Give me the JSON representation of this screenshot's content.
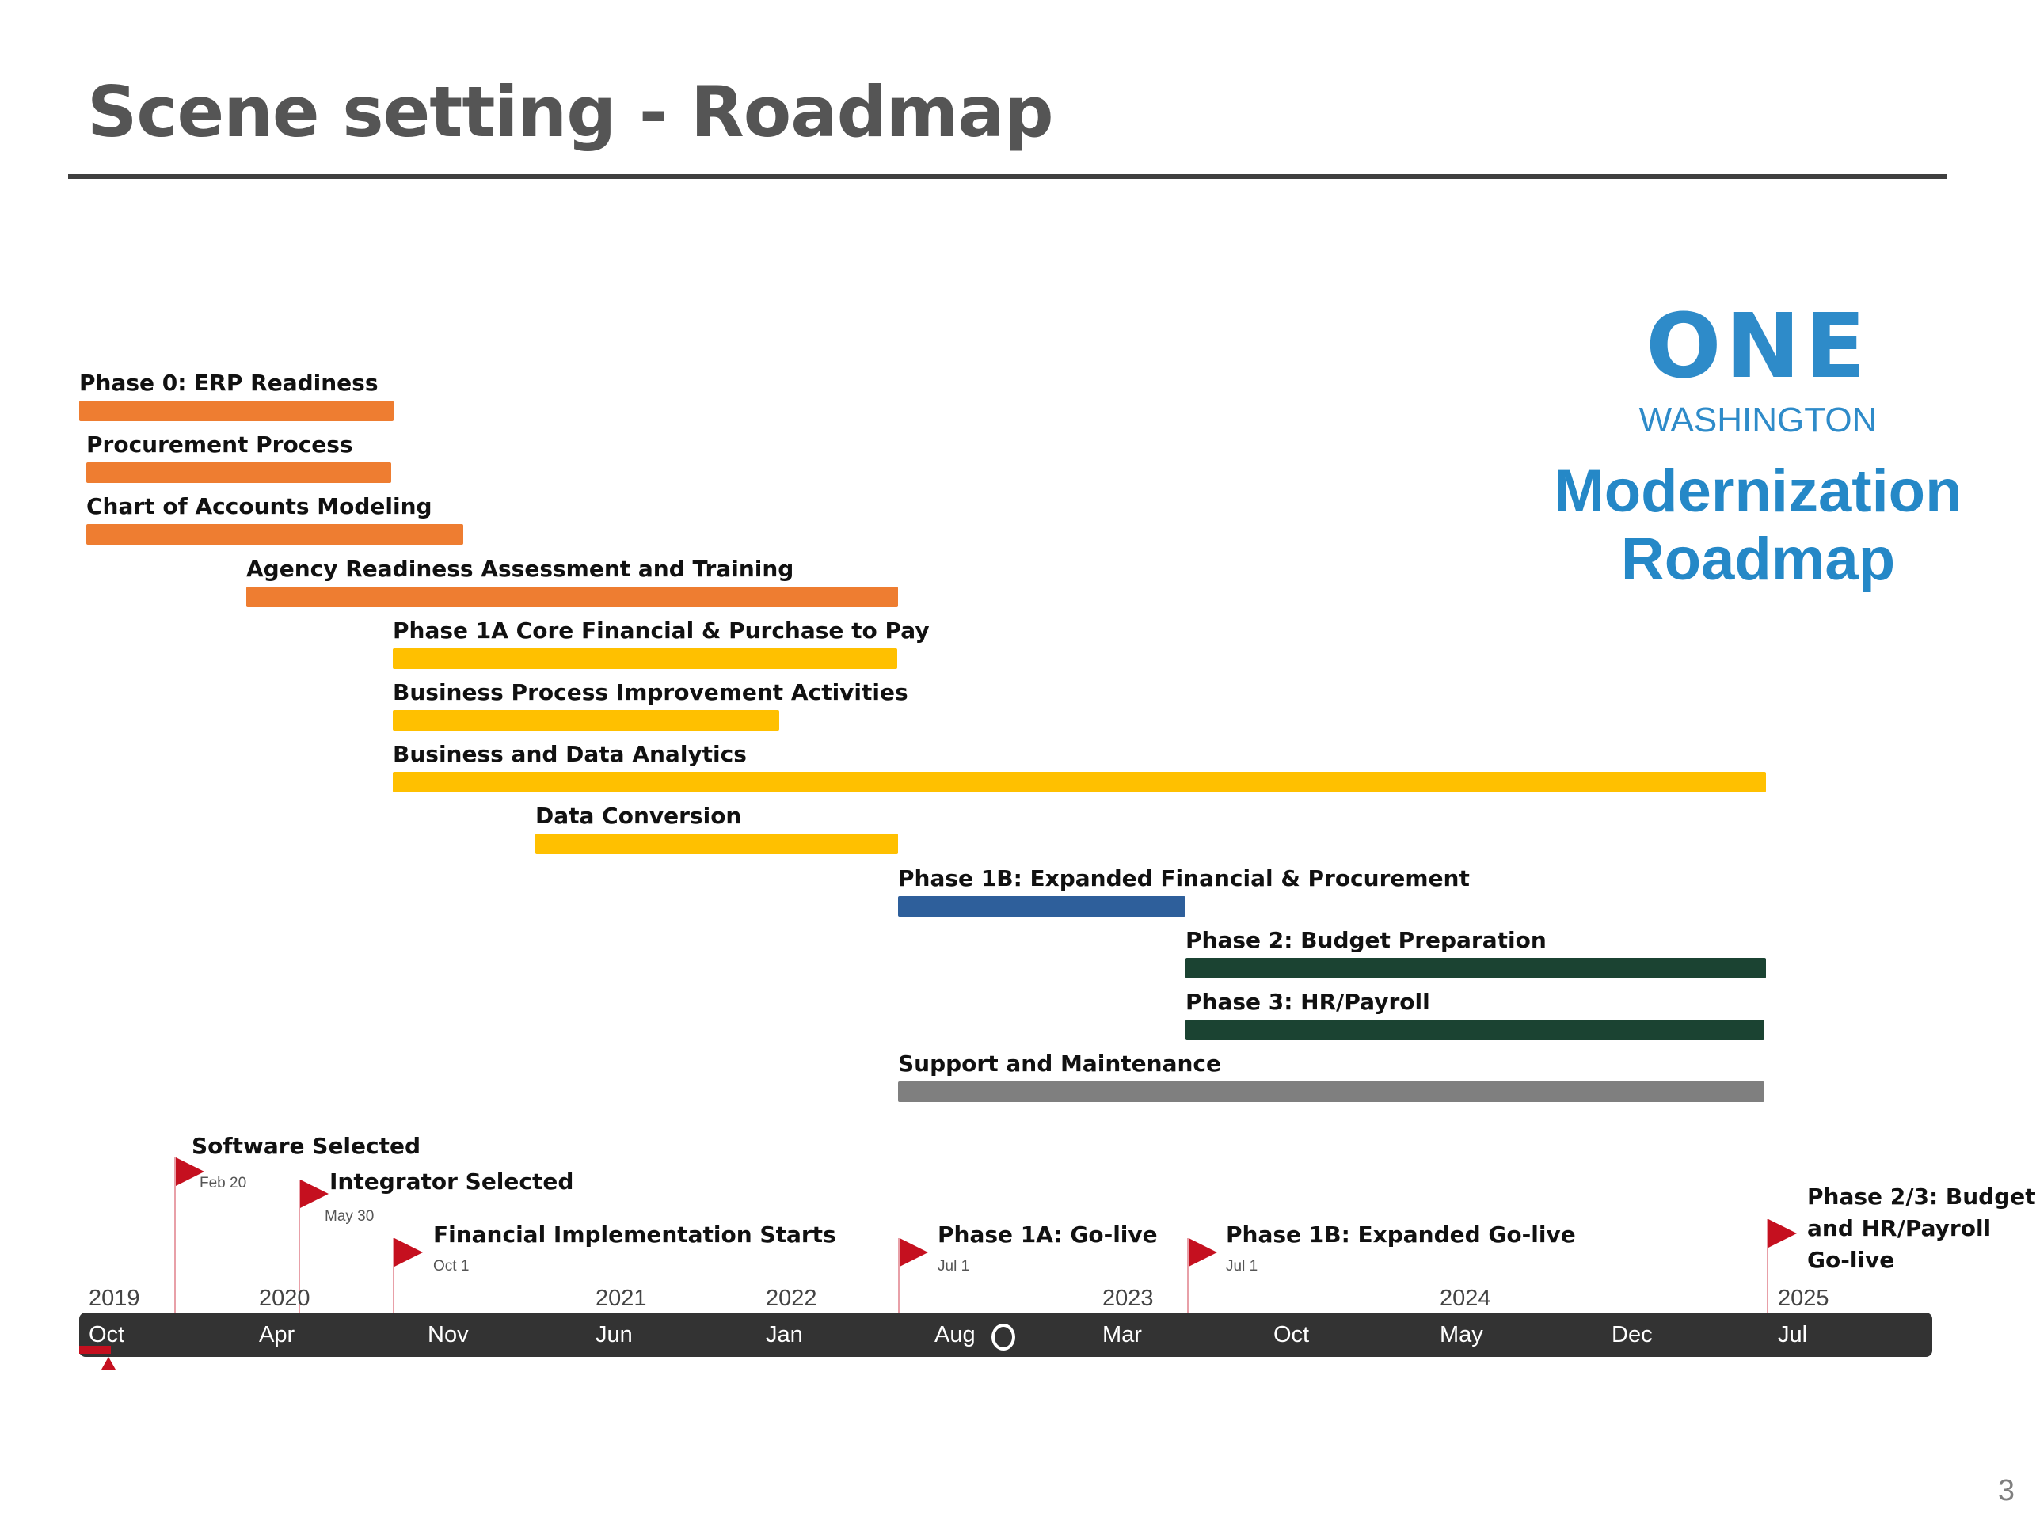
{
  "slide": {
    "title": "Scene setting - Roadmap",
    "page_number": "3"
  },
  "logo": {
    "word": "ONE",
    "subtitle": "WASHINGTON",
    "heading_line1": "Modernization",
    "heading_line2": "Roadmap",
    "color": "#2e8bc9"
  },
  "colors": {
    "orange": "#ee7d31",
    "yellow": "#ffc000",
    "blue": "#2e5f9b",
    "dark_green": "#1b4332",
    "gray": "#7f7f7f",
    "milestone_red": "#c5101f",
    "timeline": "#333333"
  },
  "tasks": [
    {
      "label": "Phase 0: ERP Readiness",
      "color": "orange",
      "start": "2019-10",
      "end": "2020-11"
    },
    {
      "label": "Procurement Process",
      "color": "orange",
      "start": "2019-10",
      "end": "2020-11"
    },
    {
      "label": "Chart of Accounts Modeling",
      "color": "orange",
      "start": "2019-10",
      "end": "2021-02"
    },
    {
      "label": "Agency Readiness Assessment and Training",
      "color": "orange",
      "start": "2020-05",
      "end": "2022-08"
    },
    {
      "label": "Phase 1A Core Financial & Purchase to Pay",
      "color": "yellow",
      "start": "2020-11",
      "end": "2022-08"
    },
    {
      "label": "Business Process Improvement Activities",
      "color": "yellow",
      "start": "2020-11",
      "end": "2022-04"
    },
    {
      "label": "Business and Data Analytics",
      "color": "yellow",
      "start": "2020-11",
      "end": "2025-07"
    },
    {
      "label": "Data Conversion",
      "color": "yellow",
      "start": "2021-05",
      "end": "2022-08"
    },
    {
      "label": "Phase 1B: Expanded Financial & Procurement",
      "color": "blue",
      "start": "2022-08",
      "end": "2023-07"
    },
    {
      "label": "Phase 2: Budget Preparation",
      "color": "dark_green",
      "start": "2023-07",
      "end": "2025-07"
    },
    {
      "label": "Phase 3: HR/Payroll",
      "color": "dark_green",
      "start": "2023-07",
      "end": "2025-07"
    },
    {
      "label": "Support and Maintenance",
      "color": "gray",
      "start": "2022-08",
      "end": "2025-07"
    }
  ],
  "milestones": [
    {
      "label_lines": [
        "Software Selected"
      ],
      "date": "Feb 20"
    },
    {
      "label_lines": [
        "Integrator Selected"
      ],
      "date": "May 30"
    },
    {
      "label_lines": [
        "Financial Implementation Starts"
      ],
      "date": "Oct 1"
    },
    {
      "label_lines": [
        "Phase 1A: Go-live"
      ],
      "date": "Jul 1"
    },
    {
      "label_lines": [
        "Phase 1B: Expanded Go-live"
      ],
      "date": "Jul 1"
    },
    {
      "label_lines": [
        "Phase 2/3: Budget",
        "and HR/Payroll",
        "Go-live"
      ],
      "date": ""
    }
  ],
  "timeline": {
    "months": [
      "Oct",
      "Apr",
      "Nov",
      "Jun",
      "Jan",
      "Aug",
      "Mar",
      "Oct",
      "May",
      "Dec",
      "Jul"
    ],
    "years": [
      "2019",
      "2020",
      "2021",
      "2022",
      "2023",
      "2024",
      "2025"
    ]
  }
}
